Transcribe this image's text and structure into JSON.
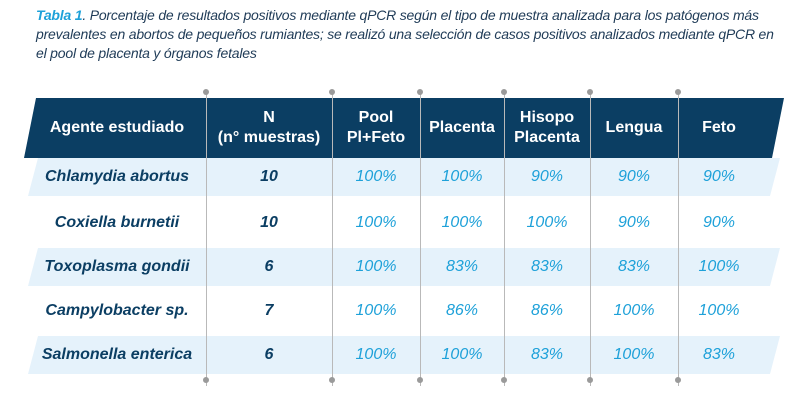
{
  "caption": {
    "label": "Tabla 1",
    "text": ". Porcentaje de resultados positivos mediante qPCR según el tipo de muestra analizada para los patógenos más prevalentes en abortos de pequeños rumiantes; se realizó una selección de casos positivos analizados mediante qPCR en el pool de placenta y órganos fetales"
  },
  "table": {
    "headers": [
      "Agente estudiado",
      "N\n(n° muestras)",
      "Pool\nPl+Feto",
      "Placenta",
      "Hisopo\nPlacenta",
      "Lengua",
      "Feto"
    ],
    "rows": [
      {
        "agent": "Chlamydia abortus",
        "n": "10",
        "pool": "100%",
        "placenta": "100%",
        "hisopo": "90%",
        "lengua": "90%",
        "feto": "90%"
      },
      {
        "agent": "Coxiella burnetii",
        "n": "10",
        "pool": "100%",
        "placenta": "100%",
        "hisopo": "100%",
        "lengua": "90%",
        "feto": "90%"
      },
      {
        "agent": "Toxoplasma gondii",
        "n": "6",
        "pool": "100%",
        "placenta": "83%",
        "hisopo": "83%",
        "lengua": "83%",
        "feto": "100%"
      },
      {
        "agent": "Campylobacter sp.",
        "n": "7",
        "pool": "100%",
        "placenta": "86%",
        "hisopo": "86%",
        "lengua": "100%",
        "feto": "100%"
      },
      {
        "agent": "Salmonella enterica",
        "n": "6",
        "pool": "100%",
        "placenta": "100%",
        "hisopo": "83%",
        "lengua": "100%",
        "feto": "83%"
      }
    ]
  },
  "colors": {
    "header_bg": "#0b3e63",
    "band_bg": "#e5f2fb",
    "accent": "#1ea1d9",
    "dark_text": "#0b3e63"
  }
}
